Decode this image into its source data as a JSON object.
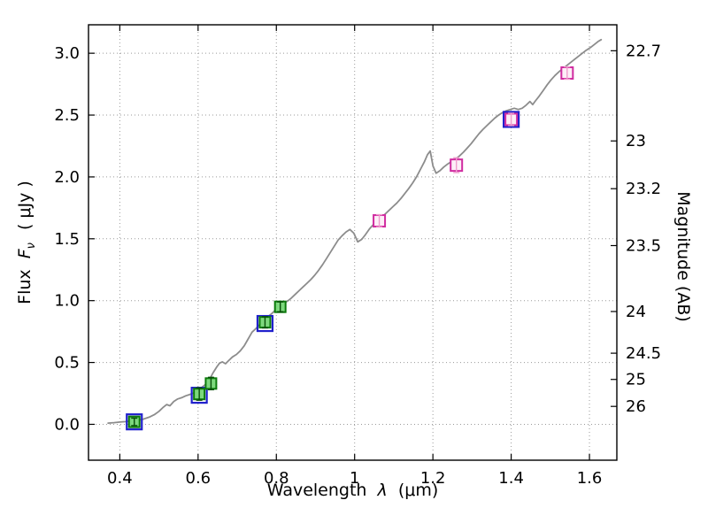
{
  "chart_data": {
    "type": "line",
    "title": "",
    "xlabel_parts": {
      "prefix": "Wavelength",
      "symbol": "λ",
      "unit": "(μm)"
    },
    "ylabel_parts": {
      "prefix": "Flux",
      "symbol": "F",
      "subscript": "ν",
      "unit": "( μJy )"
    },
    "right_ylabel": "Magnitude (AB)",
    "xlim": [
      0.32,
      1.67
    ],
    "ylim": [
      -0.29,
      3.23
    ],
    "grid": true,
    "legend": "none",
    "xticks": [
      {
        "v": 0.4,
        "label": "0.4"
      },
      {
        "v": 0.6,
        "label": "0.6"
      },
      {
        "v": 0.8,
        "label": "0.8"
      },
      {
        "v": 1.0,
        "label": "1"
      },
      {
        "v": 1.2,
        "label": "1.2"
      },
      {
        "v": 1.4,
        "label": "1.4"
      },
      {
        "v": 1.6,
        "label": "1.6"
      }
    ],
    "yticks": [
      {
        "v": 0.0,
        "label": "0.0"
      },
      {
        "v": 0.5,
        "label": "0.5"
      },
      {
        "v": 1.0,
        "label": "1.0"
      },
      {
        "v": 1.5,
        "label": "1.5"
      },
      {
        "v": 2.0,
        "label": "2.0"
      },
      {
        "v": 2.5,
        "label": "2.5"
      },
      {
        "v": 3.0,
        "label": "3.0"
      }
    ],
    "right_yticks": [
      {
        "flux": 3.02,
        "label": "22.7"
      },
      {
        "flux": 2.291,
        "label": "23"
      },
      {
        "flux": 1.905,
        "label": "23.2"
      },
      {
        "flux": 1.445,
        "label": "23.5"
      },
      {
        "flux": 0.912,
        "label": "24"
      },
      {
        "flux": 0.575,
        "label": "24.5"
      },
      {
        "flux": 0.363,
        "label": "25"
      },
      {
        "flux": 0.145,
        "label": "26"
      }
    ],
    "spectrum": {
      "name": "model-spectrum",
      "color": "#8c8c8c",
      "points": [
        [
          0.37,
          0.01
        ],
        [
          0.385,
          0.013
        ],
        [
          0.4,
          0.018
        ],
        [
          0.415,
          0.022
        ],
        [
          0.43,
          0.028
        ],
        [
          0.445,
          0.032
        ],
        [
          0.46,
          0.042
        ],
        [
          0.475,
          0.058
        ],
        [
          0.488,
          0.078
        ],
        [
          0.5,
          0.105
        ],
        [
          0.51,
          0.135
        ],
        [
          0.52,
          0.16
        ],
        [
          0.528,
          0.15
        ],
        [
          0.538,
          0.185
        ],
        [
          0.548,
          0.205
        ],
        [
          0.558,
          0.215
        ],
        [
          0.568,
          0.23
        ],
        [
          0.578,
          0.24
        ],
        [
          0.588,
          0.252
        ],
        [
          0.598,
          0.268
        ],
        [
          0.608,
          0.295
        ],
        [
          0.618,
          0.32
        ],
        [
          0.628,
          0.355
        ],
        [
          0.638,
          0.415
        ],
        [
          0.648,
          0.465
        ],
        [
          0.655,
          0.495
        ],
        [
          0.662,
          0.505
        ],
        [
          0.67,
          0.49
        ],
        [
          0.678,
          0.515
        ],
        [
          0.688,
          0.545
        ],
        [
          0.698,
          0.565
        ],
        [
          0.708,
          0.595
        ],
        [
          0.718,
          0.635
        ],
        [
          0.728,
          0.69
        ],
        [
          0.738,
          0.745
        ],
        [
          0.748,
          0.775
        ],
        [
          0.758,
          0.81
        ],
        [
          0.768,
          0.845
        ],
        [
          0.778,
          0.87
        ],
        [
          0.788,
          0.895
        ],
        [
          0.798,
          0.925
        ],
        [
          0.808,
          0.955
        ],
        [
          0.818,
          0.975
        ],
        [
          0.828,
          0.995
        ],
        [
          0.838,
          1.02
        ],
        [
          0.848,
          1.05
        ],
        [
          0.858,
          1.08
        ],
        [
          0.868,
          1.11
        ],
        [
          0.878,
          1.14
        ],
        [
          0.888,
          1.17
        ],
        [
          0.898,
          1.205
        ],
        [
          0.908,
          1.245
        ],
        [
          0.918,
          1.29
        ],
        [
          0.928,
          1.34
        ],
        [
          0.938,
          1.39
        ],
        [
          0.948,
          1.44
        ],
        [
          0.958,
          1.49
        ],
        [
          0.968,
          1.525
        ],
        [
          0.978,
          1.555
        ],
        [
          0.988,
          1.575
        ],
        [
          0.998,
          1.545
        ],
        [
          1.008,
          1.475
        ],
        [
          1.018,
          1.495
        ],
        [
          1.028,
          1.535
        ],
        [
          1.038,
          1.58
        ],
        [
          1.048,
          1.615
        ],
        [
          1.058,
          1.645
        ],
        [
          1.068,
          1.67
        ],
        [
          1.078,
          1.7
        ],
        [
          1.088,
          1.73
        ],
        [
          1.098,
          1.76
        ],
        [
          1.108,
          1.79
        ],
        [
          1.118,
          1.825
        ],
        [
          1.128,
          1.865
        ],
        [
          1.138,
          1.905
        ],
        [
          1.148,
          1.95
        ],
        [
          1.158,
          2.0
        ],
        [
          1.168,
          2.06
        ],
        [
          1.178,
          2.12
        ],
        [
          1.186,
          2.18
        ],
        [
          1.193,
          2.21
        ],
        [
          1.2,
          2.09
        ],
        [
          1.208,
          2.03
        ],
        [
          1.218,
          2.05
        ],
        [
          1.228,
          2.08
        ],
        [
          1.238,
          2.105
        ],
        [
          1.248,
          2.125
        ],
        [
          1.258,
          2.145
        ],
        [
          1.268,
          2.17
        ],
        [
          1.278,
          2.2
        ],
        [
          1.288,
          2.235
        ],
        [
          1.298,
          2.27
        ],
        [
          1.308,
          2.31
        ],
        [
          1.318,
          2.35
        ],
        [
          1.328,
          2.385
        ],
        [
          1.338,
          2.415
        ],
        [
          1.348,
          2.445
        ],
        [
          1.358,
          2.475
        ],
        [
          1.368,
          2.5
        ],
        [
          1.378,
          2.52
        ],
        [
          1.388,
          2.535
        ],
        [
          1.398,
          2.545
        ],
        [
          1.408,
          2.555
        ],
        [
          1.418,
          2.545
        ],
        [
          1.428,
          2.555
        ],
        [
          1.438,
          2.58
        ],
        [
          1.448,
          2.61
        ],
        [
          1.455,
          2.585
        ],
        [
          1.462,
          2.615
        ],
        [
          1.472,
          2.655
        ],
        [
          1.482,
          2.7
        ],
        [
          1.492,
          2.745
        ],
        [
          1.502,
          2.785
        ],
        [
          1.512,
          2.82
        ],
        [
          1.522,
          2.85
        ],
        [
          1.532,
          2.875
        ],
        [
          1.542,
          2.9
        ],
        [
          1.552,
          2.925
        ],
        [
          1.562,
          2.95
        ],
        [
          1.572,
          2.975
        ],
        [
          1.582,
          3.0
        ],
        [
          1.592,
          3.025
        ],
        [
          1.602,
          3.045
        ],
        [
          1.612,
          3.07
        ],
        [
          1.622,
          3.095
        ],
        [
          1.63,
          3.11
        ]
      ]
    },
    "series": [
      {
        "name": "model-band-photometry",
        "marker": "square",
        "edge_color": "#2020cc",
        "fill": "none",
        "size": 17,
        "line_width": 2.2,
        "points": [
          [
            0.437,
            0.02
          ],
          [
            0.603,
            0.235
          ],
          [
            0.771,
            0.815
          ],
          [
            1.4,
            2.465
          ]
        ]
      },
      {
        "name": "observed-optical-photometry",
        "marker": "square",
        "edge_color": "#0b7a0b",
        "fill": "#7dd87d",
        "size": 12,
        "line_width": 2,
        "err": [
          0.03,
          0.05,
          0.05,
          0.045,
          0.04
        ],
        "err_color": "#074d07",
        "points": [
          [
            0.437,
            0.02
          ],
          [
            0.603,
            0.245
          ],
          [
            0.633,
            0.33
          ],
          [
            0.771,
            0.825
          ],
          [
            0.81,
            0.95
          ]
        ]
      },
      {
        "name": "observed-nir-photometry",
        "marker": "square",
        "edge_color": "#d02ba0",
        "fill": "#fdeef7",
        "size": 13,
        "line_width": 2,
        "err": [
          0.05,
          0.06,
          0.05,
          0.05
        ],
        "err_color": "#ef9ccd",
        "points": [
          [
            1.063,
            1.645
          ],
          [
            1.26,
            2.095
          ],
          [
            1.4,
            2.465
          ],
          [
            1.543,
            2.84
          ]
        ]
      }
    ]
  }
}
